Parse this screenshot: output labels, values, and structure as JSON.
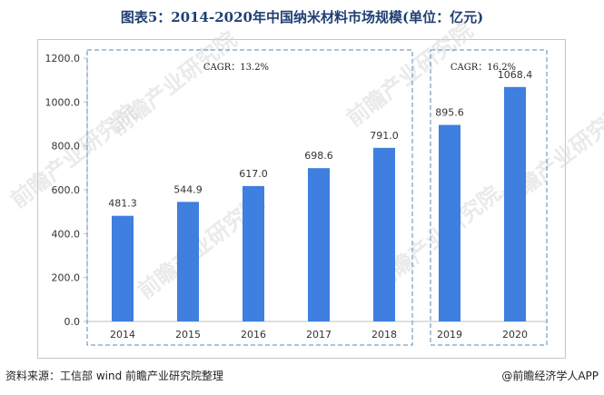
{
  "title": "图表5：2014-2020年中国纳米材料市场规模(单位：亿元)",
  "source": "资料来源：工信部 wind 前瞻产业研究院整理",
  "brand": "@前瞻经济学人APP",
  "watermark": "前瞻产业研究院",
  "colors": {
    "bar": "#3e7fdf",
    "title": "#1f3f73",
    "group_border": "#5a8ab5",
    "axis": "#bfbfbf"
  },
  "chart_data": {
    "type": "bar",
    "title": "图表5：2014-2020年中国纳米材料市场规模(单位：亿元)",
    "xlabel": "",
    "ylabel": "",
    "categories": [
      "2014",
      "2015",
      "2016",
      "2017",
      "2018",
      "2019",
      "2020"
    ],
    "values": [
      481.3,
      544.9,
      617.0,
      698.6,
      791.0,
      895.6,
      1068.4
    ],
    "value_labels": [
      "481.3",
      "544.9",
      "617.0",
      "698.6",
      "791.0",
      "895.6",
      "1068.4"
    ],
    "ylim": [
      0,
      1200
    ],
    "yticks": [
      0,
      200,
      400,
      600,
      800,
      1000,
      1200
    ],
    "ytick_labels": [
      "0.0",
      "200.0",
      "400.0",
      "600.0",
      "800.0",
      "1000.0",
      "1200.0"
    ],
    "grid": false,
    "groups": [
      {
        "label": "CAGR：13.2%",
        "categories": [
          "2014",
          "2015",
          "2016",
          "2017",
          "2018"
        ]
      },
      {
        "label": "CAGR：16.2%",
        "categories": [
          "2019",
          "2020"
        ]
      }
    ]
  }
}
